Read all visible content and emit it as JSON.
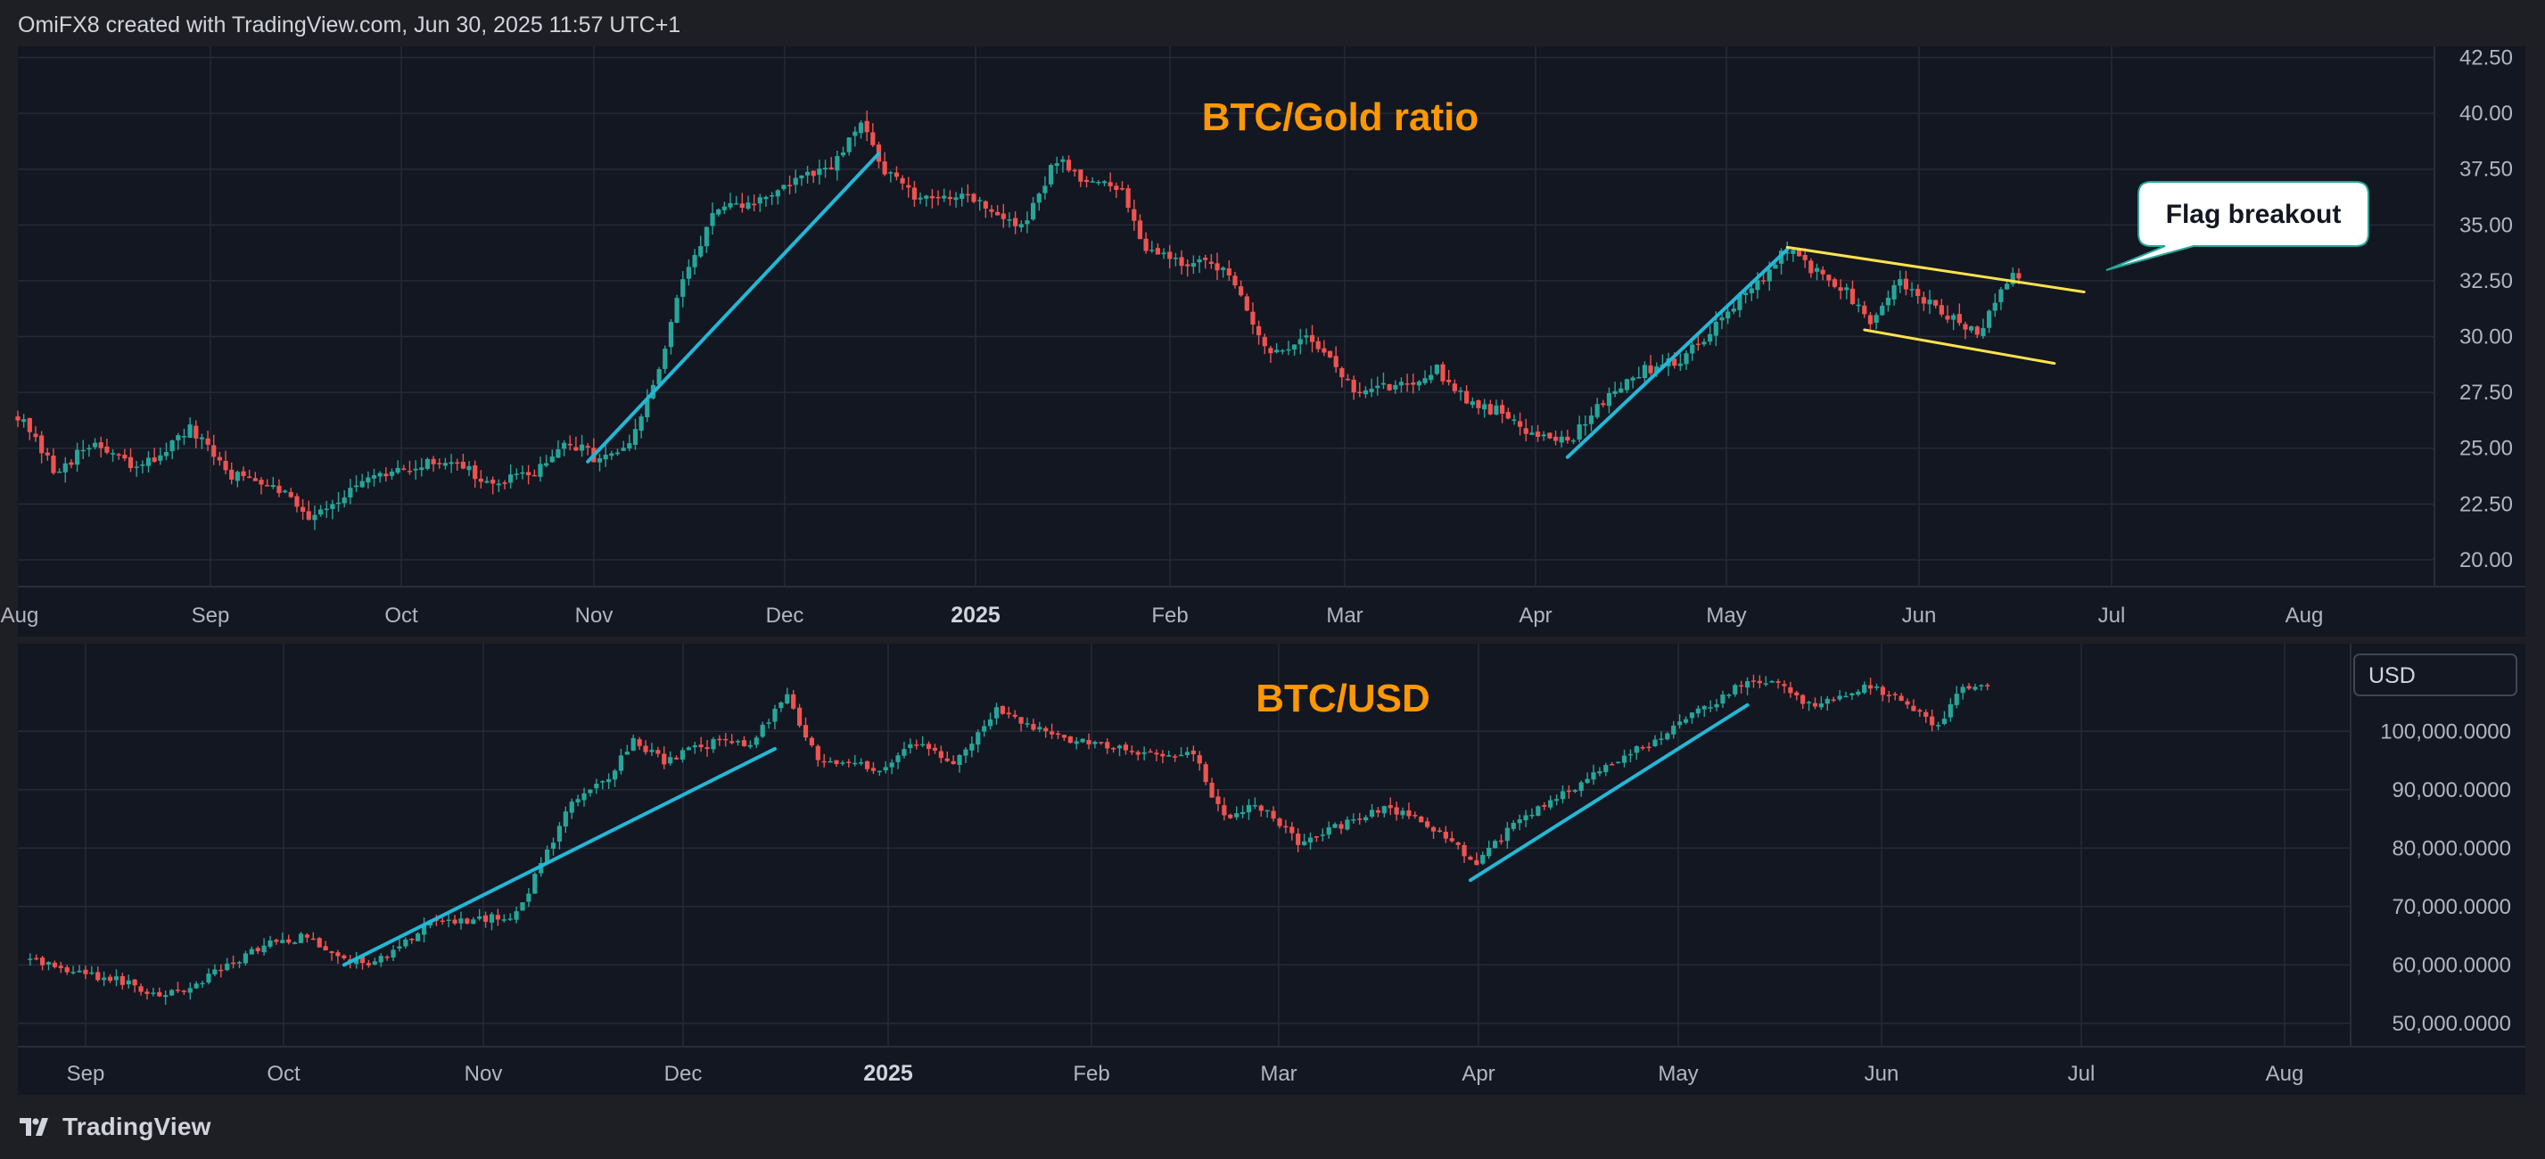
{
  "header": {
    "credit": "OmiFX8 created with TradingView.com, Jun 30, 2025 11:57 UTC+1"
  },
  "footer": {
    "brand": "TradingView",
    "logo_icon": "tradingview-logo-icon"
  },
  "colors": {
    "background": "#1e1f24",
    "pane": "#131722",
    "grid": "#252a37",
    "up_candle": "#26a69a",
    "down_candle": "#ef5350",
    "trend_line": "#22b8d6",
    "flag_line": "#ffe34d",
    "title_orange": "#ff9800"
  },
  "chart_data": [
    {
      "type": "candlestick",
      "title": "BTC/Gold ratio",
      "x_labels": [
        "Aug",
        "Sep",
        "Oct",
        "Nov",
        "Dec",
        "2025",
        "Feb",
        "Mar",
        "Apr",
        "May",
        "Jun",
        "Jul",
        "Aug"
      ],
      "y_ticks": [
        "42.50",
        "40.00",
        "37.50",
        "35.00",
        "32.50",
        "30.00",
        "27.50",
        "25.00",
        "22.50",
        "20.00"
      ],
      "ylim": [
        18.8,
        43.0
      ],
      "close_anchors": [
        [
          "2024-07-28",
          26.5
        ],
        [
          "2024-08-03",
          24.0
        ],
        [
          "2024-08-10",
          25.2
        ],
        [
          "2024-08-17",
          24.0
        ],
        [
          "2024-08-26",
          25.8
        ],
        [
          "2024-09-02",
          23.8
        ],
        [
          "2024-09-09",
          23.5
        ],
        [
          "2024-09-15",
          22.0
        ],
        [
          "2024-09-25",
          23.5
        ],
        [
          "2024-10-03",
          24.2
        ],
        [
          "2024-10-10",
          24.5
        ],
        [
          "2024-10-15",
          23.3
        ],
        [
          "2024-10-22",
          23.8
        ],
        [
          "2024-10-29",
          25.2
        ],
        [
          "2024-11-03",
          24.5
        ],
        [
          "2024-11-08",
          25.0
        ],
        [
          "2024-11-13",
          28.5
        ],
        [
          "2024-11-17",
          32.5
        ],
        [
          "2024-11-22",
          35.5
        ],
        [
          "2024-11-29",
          36.0
        ],
        [
          "2024-12-06",
          37.0
        ],
        [
          "2024-12-12",
          37.5
        ],
        [
          "2024-12-17",
          39.5
        ],
        [
          "2024-12-21",
          37.5
        ],
        [
          "2024-12-27",
          36.0
        ],
        [
          "2025-01-03",
          36.5
        ],
        [
          "2025-01-09",
          35.5
        ],
        [
          "2025-01-13",
          34.8
        ],
        [
          "2025-01-19",
          38.0
        ],
        [
          "2025-01-24",
          37.0
        ],
        [
          "2025-01-30",
          36.5
        ],
        [
          "2025-02-03",
          34.0
        ],
        [
          "2025-02-10",
          33.3
        ],
        [
          "2025-02-17",
          33.0
        ],
        [
          "2025-02-24",
          29.0
        ],
        [
          "2025-03-02",
          30.2
        ],
        [
          "2025-03-06",
          29.0
        ],
        [
          "2025-03-10",
          27.5
        ],
        [
          "2025-03-17",
          27.8
        ],
        [
          "2025-03-24",
          28.5
        ],
        [
          "2025-03-30",
          27.0
        ],
        [
          "2025-04-05",
          26.5
        ],
        [
          "2025-04-10",
          25.5
        ],
        [
          "2025-04-16",
          25.5
        ],
        [
          "2025-04-22",
          27.5
        ],
        [
          "2025-04-28",
          28.5
        ],
        [
          "2025-05-04",
          29.0
        ],
        [
          "2025-05-08",
          30.0
        ],
        [
          "2025-05-13",
          31.5
        ],
        [
          "2025-05-18",
          32.5
        ],
        [
          "2025-05-22",
          34.0
        ],
        [
          "2025-05-26",
          33.0
        ],
        [
          "2025-06-01",
          32.0
        ],
        [
          "2025-06-05",
          30.5
        ],
        [
          "2025-06-10",
          32.5
        ],
        [
          "2025-06-13",
          31.8
        ],
        [
          "2025-06-17",
          31.0
        ],
        [
          "2025-06-20",
          30.8
        ],
        [
          "2025-06-23",
          30.0
        ],
        [
          "2025-06-27",
          32.3
        ],
        [
          "2025-06-30",
          32.8
        ]
      ],
      "trend_lines": [
        {
          "from": [
            "2024-11-01",
            24.4
          ],
          "to": [
            "2024-12-20",
            38.2
          ]
        },
        {
          "from": [
            "2025-04-15",
            24.6
          ],
          "to": [
            "2025-05-22",
            33.9
          ]
        }
      ],
      "flag_lines": [
        {
          "from": [
            "2025-05-22",
            34.0
          ],
          "to": [
            "2025-07-11",
            32.0
          ]
        },
        {
          "from": [
            "2025-06-04",
            30.3
          ],
          "to": [
            "2025-07-06",
            28.8
          ]
        }
      ],
      "annotation": {
        "text": "Flag breakout",
        "date": "2025-06-28",
        "value": 33.0
      }
    },
    {
      "type": "candlestick",
      "title": "BTC/USD",
      "currency_label": "USD",
      "x_labels": [
        "Sep",
        "Oct",
        "Nov",
        "Dec",
        "2025",
        "Feb",
        "Mar",
        "Apr",
        "May",
        "Jun",
        "Jul",
        "Aug"
      ],
      "y_ticks": [
        "100,000.0000",
        "90,000.0000",
        "80,000.0000",
        "70,000.0000",
        "60,000.0000",
        "50,000.0000"
      ],
      "ylim": [
        46000,
        115000
      ],
      "close_anchors": [
        [
          "2024-08-16",
          61000
        ],
        [
          "2024-08-23",
          59000
        ],
        [
          "2024-09-01",
          57000
        ],
        [
          "2024-09-06",
          54000
        ],
        [
          "2024-09-14",
          58000
        ],
        [
          "2024-09-22",
          63000
        ],
        [
          "2024-09-30",
          65000
        ],
        [
          "2024-10-05",
          61000
        ],
        [
          "2024-10-11",
          60500
        ],
        [
          "2024-10-20",
          67000
        ],
        [
          "2024-10-27",
          67500
        ],
        [
          "2024-11-03",
          68500
        ],
        [
          "2024-11-06",
          75000
        ],
        [
          "2024-11-12",
          88000
        ],
        [
          "2024-11-18",
          92000
        ],
        [
          "2024-11-22",
          98500
        ],
        [
          "2024-11-27",
          95000
        ],
        [
          "2024-12-05",
          98000
        ],
        [
          "2024-12-11",
          98000
        ],
        [
          "2024-12-17",
          106000
        ],
        [
          "2024-12-22",
          95000
        ],
        [
          "2025-01-01",
          93500
        ],
        [
          "2025-01-07",
          98000
        ],
        [
          "2025-01-13",
          94000
        ],
        [
          "2025-01-20",
          104000
        ],
        [
          "2025-01-27",
          100000
        ],
        [
          "2025-02-03",
          98000
        ],
        [
          "2025-02-13",
          96000
        ],
        [
          "2025-02-21",
          96000
        ],
        [
          "2025-02-26",
          85000
        ],
        [
          "2025-03-03",
          88000
        ],
        [
          "2025-03-10",
          81000
        ],
        [
          "2025-03-17",
          84000
        ],
        [
          "2025-03-25",
          87000
        ],
        [
          "2025-04-02",
          83000
        ],
        [
          "2025-04-08",
          77000
        ],
        [
          "2025-04-14",
          84000
        ],
        [
          "2025-04-22",
          89000
        ],
        [
          "2025-05-01",
          95000
        ],
        [
          "2025-05-08",
          99000
        ],
        [
          "2025-05-15",
          104000
        ],
        [
          "2025-05-21",
          108000
        ],
        [
          "2025-05-26",
          109000
        ],
        [
          "2025-06-02",
          104000
        ],
        [
          "2025-06-10",
          108000
        ],
        [
          "2025-06-17",
          104500
        ],
        [
          "2025-06-22",
          100500
        ],
        [
          "2025-06-25",
          107000
        ],
        [
          "2025-06-30",
          107500
        ]
      ],
      "trend_lines": [
        {
          "from": [
            "2024-10-06",
            60000
          ],
          "to": [
            "2024-12-15",
            97000
          ]
        },
        {
          "from": [
            "2025-04-07",
            74500
          ],
          "to": [
            "2025-05-22",
            104500
          ]
        }
      ]
    }
  ]
}
